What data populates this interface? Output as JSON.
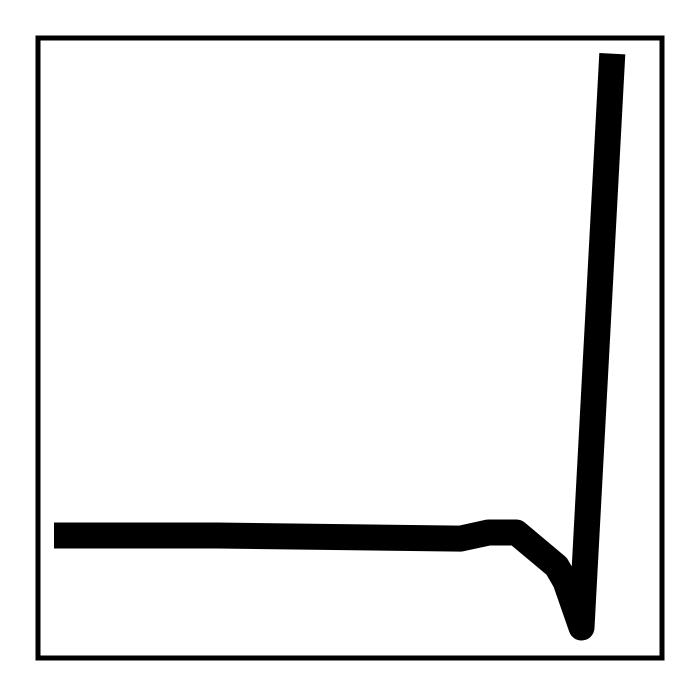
{
  "chart_data": {
    "type": "line",
    "title": "",
    "xlabel": "",
    "ylabel": "",
    "grid": false,
    "legend": "none",
    "colors": {
      "background": "#ffffff",
      "frame": "#000000",
      "line": "#000000"
    },
    "xlim": [
      0,
      100
    ],
    "ylim": [
      0,
      100
    ],
    "series": [
      {
        "x": [
          0,
          27.5,
          68.7,
          73.4,
          78.1,
          84.9,
          86.4,
          89.1,
          94.3
        ],
        "y": [
          19,
          19,
          18.5,
          19.5,
          19.5,
          14,
          11.5,
          4,
          97.6
        ]
      }
    ]
  }
}
